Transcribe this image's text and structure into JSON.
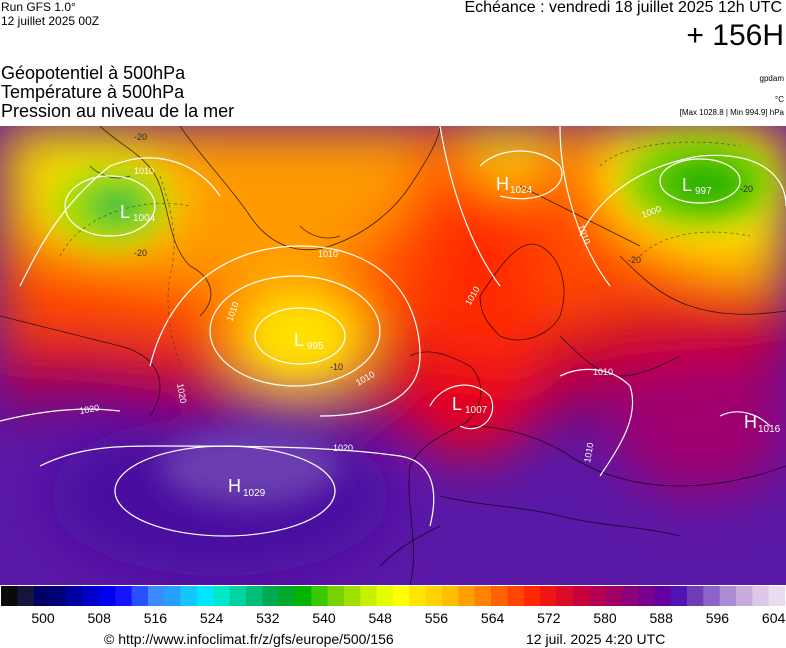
{
  "header": {
    "run": "Run GFS 1.0°",
    "run_date": "12 juillet 2025 00Z",
    "echeance": "Echéance : vendredi 18 juillet 2025 12h UTC",
    "forecast_hour": "+ 156H"
  },
  "fields": {
    "line1": "Géopotentiel à 500hPa",
    "line2": "Température à 500hPa",
    "line3": "Pression au niveau de la mer",
    "unit1": "gpdam",
    "unit2": "°C",
    "unit3": "[Max 1028.8 | Min 994.9] hPa"
  },
  "map": {
    "pressure_centers": [
      {
        "type": "L",
        "value": "1004"
      },
      {
        "type": "L",
        "value": "995"
      },
      {
        "type": "H",
        "value": "1024"
      },
      {
        "type": "L",
        "value": "997"
      },
      {
        "type": "L",
        "value": "1007"
      },
      {
        "type": "H",
        "value": "1016"
      },
      {
        "type": "H",
        "value": "1029"
      }
    ],
    "isobar_labels": [
      "1010",
      "1010",
      "1010",
      "1010",
      "1010",
      "1020",
      "1020",
      "1020",
      "1000",
      "1010",
      "1010",
      "1010"
    ],
    "temp_labels": [
      "-20",
      "-20",
      "-20",
      "-20",
      "-10"
    ]
  },
  "colorbar": {
    "colors": [
      "#0a0a0a",
      "#14143c",
      "#000066",
      "#00007a",
      "#0000a0",
      "#0000c8",
      "#0000f0",
      "#1414ff",
      "#2850ff",
      "#3c8cff",
      "#28a0ff",
      "#14c8ff",
      "#00e6ff",
      "#00e6c8",
      "#00d2a0",
      "#00be78",
      "#00aa50",
      "#00aa28",
      "#00b400",
      "#3cc800",
      "#78d200",
      "#a0e000",
      "#c8f000",
      "#e6ff00",
      "#ffff00",
      "#ffe600",
      "#ffd200",
      "#ffbe00",
      "#ffa000",
      "#ff8200",
      "#ff6400",
      "#ff4600",
      "#ff2800",
      "#f01414",
      "#dc0a28",
      "#c8003c",
      "#b40050",
      "#a00064",
      "#8c0078",
      "#78008c",
      "#6400a0",
      "#5014b4",
      "#6e3cb4",
      "#8c64c8",
      "#aa8cd2",
      "#c8aadc",
      "#dcc8e6",
      "#eadcf0"
    ],
    "tick_labels": [
      "500",
      "508",
      "516",
      "524",
      "532",
      "540",
      "548",
      "556",
      "564",
      "572",
      "580",
      "588",
      "596",
      "604"
    ]
  },
  "footer": {
    "credit": "© http://www.infoclimat.fr/z/gfs/europe/500/156",
    "stamp": "12 juil. 2025  4:20 UTC"
  }
}
